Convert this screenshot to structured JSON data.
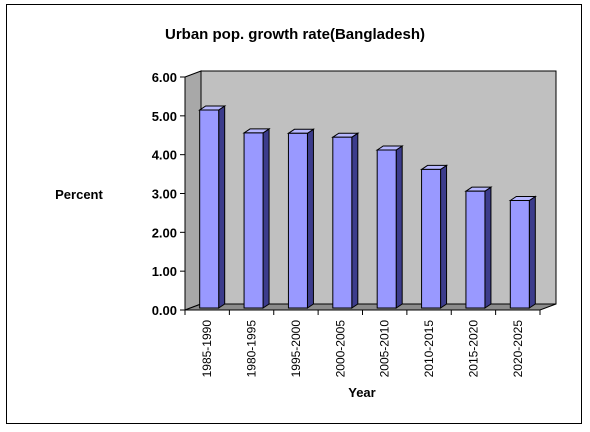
{
  "chart_data": {
    "type": "bar",
    "title": "Urban pop. growth rate(Bangladesh)",
    "xlabel": "Year",
    "ylabel": "Percent",
    "ylim": [
      0,
      6
    ],
    "yticks": [
      "0.00",
      "1.00",
      "2.00",
      "3.00",
      "4.00",
      "5.00",
      "6.00"
    ],
    "categories": [
      "1985-1990",
      "1980-1995",
      "1995-2000",
      "2000-2005",
      "2005-2010",
      "2010-2015",
      "2015-2020",
      "2020-2025"
    ],
    "values": [
      5.15,
      4.56,
      4.55,
      4.45,
      4.12,
      3.62,
      3.06,
      2.82
    ],
    "colors": {
      "bar_front": "#9999ff",
      "bar_side": "#3c3c8c",
      "bar_top": "#b8b8ff",
      "wall": "#c0c0c0",
      "floor": "#8c8c8c"
    }
  }
}
